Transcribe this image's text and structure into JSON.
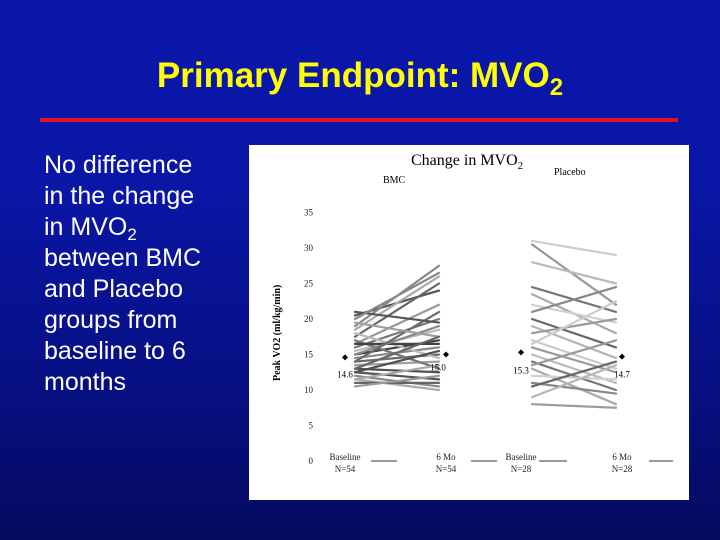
{
  "slide": {
    "title": "Primary Endpoint: MVO",
    "title_sub": "2",
    "bullet_lines": [
      "No difference",
      "in the change",
      "in MVO",
      "between BMC",
      "and Placebo",
      "groups from",
      "baseline to 6",
      "months"
    ],
    "bullet_sub": "2"
  },
  "colors": {
    "title": "#ffff00",
    "rule": "#e0141e",
    "text": "#ffffff"
  },
  "chart_data": {
    "type": "line",
    "title": "Change in MVO",
    "title_sub": "2",
    "group_labels": [
      "BMC",
      "Placebo"
    ],
    "ylabel": "Peak VO2 (ml/kg/min)",
    "ylim": [
      0,
      35
    ],
    "yticks": [
      "0",
      "5",
      "10",
      "15",
      "20",
      "25",
      "30",
      "35"
    ],
    "categories": [
      {
        "label": "Baseline",
        "n": "N=54"
      },
      {
        "label": "6 Mo",
        "n": "N=54"
      },
      {
        "label": "Baseline",
        "n": "N=28"
      },
      {
        "label": "6 Mo",
        "n": "N=28"
      }
    ],
    "means": [
      14.6,
      15.0,
      15.3,
      14.7
    ],
    "mean_labels": [
      "14.6",
      "15.0",
      "15.3",
      "14.7"
    ],
    "series": [
      {
        "name": "BMC",
        "pairs": [
          [
            20.5,
            24.0
          ],
          [
            19.0,
            27.5
          ],
          [
            18.5,
            26.0
          ],
          [
            17.5,
            25.0
          ],
          [
            16.5,
            22.0
          ],
          [
            16.0,
            20.0
          ],
          [
            15.5,
            18.5
          ],
          [
            15.0,
            17.0
          ],
          [
            14.5,
            16.0
          ],
          [
            14.0,
            15.0
          ],
          [
            13.5,
            14.0
          ],
          [
            13.0,
            12.5
          ],
          [
            12.5,
            11.5
          ],
          [
            12.0,
            10.5
          ],
          [
            11.5,
            10.0
          ],
          [
            11.0,
            11.0
          ],
          [
            10.5,
            12.0
          ],
          [
            17.0,
            13.0
          ],
          [
            18.0,
            14.5
          ],
          [
            16.5,
            16.5
          ],
          [
            15.0,
            19.0
          ],
          [
            14.0,
            21.0
          ],
          [
            19.5,
            17.5
          ],
          [
            12.5,
            15.5
          ],
          [
            21.0,
            19.5
          ],
          [
            20.0,
            26.5
          ],
          [
            11.5,
            13.5
          ],
          [
            13.0,
            17.5
          ]
        ]
      },
      {
        "name": "Placebo",
        "pairs": [
          [
            31.0,
            29.0
          ],
          [
            30.5,
            22.0
          ],
          [
            28.0,
            25.0
          ],
          [
            24.5,
            21.0
          ],
          [
            23.5,
            18.0
          ],
          [
            22.0,
            19.5
          ],
          [
            21.0,
            24.5
          ],
          [
            20.0,
            16.0
          ],
          [
            19.0,
            14.5
          ],
          [
            18.0,
            20.0
          ],
          [
            17.0,
            13.0
          ],
          [
            16.0,
            12.5
          ],
          [
            15.0,
            11.0
          ],
          [
            14.0,
            10.0
          ],
          [
            13.0,
            8.0
          ],
          [
            12.0,
            11.5
          ],
          [
            11.0,
            9.5
          ],
          [
            10.5,
            14.0
          ],
          [
            9.0,
            13.5
          ],
          [
            8.0,
            7.5
          ],
          [
            16.5,
            22.5
          ],
          [
            13.5,
            17.0
          ]
        ]
      }
    ]
  }
}
